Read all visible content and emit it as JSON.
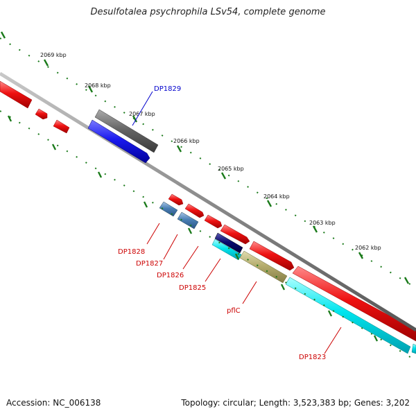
{
  "title": "Desulfotalea psychrophila LSv54, complete genome",
  "footer": {
    "accession": "Accession: NC_006138",
    "topology": "Topology: circular; Length: 3,523,383 bp; Genes: 3,202"
  },
  "scale_labels": [
    "2069 kbp",
    "2068 kbp",
    "2067 kbp",
    "2066 kbp",
    "2065 kbp",
    "2064 kbp",
    "2063 kbp",
    "2062 kbp"
  ],
  "gene_labels": {
    "dp1829": "DP1829",
    "dp1828": "DP1828",
    "dp1827": "DP1827",
    "dp1826": "DP1826",
    "dp1825": "DP1825",
    "pflc": "pflC",
    "dp1823": "DP1823"
  },
  "colors": {
    "forward_cds": "#ee1111",
    "reverse_cds": "#ee1111",
    "blue_gene": "#1a1aee",
    "gray_gene": "#666666",
    "steelblue_gene": "#4a7fb5",
    "cyan_gene": "#00e5ee",
    "navy_gene": "#0a0a70",
    "olive_gene": "#b5ad6e",
    "backbone": "#8a8a8a",
    "ticks": "#1a7a1a"
  }
}
